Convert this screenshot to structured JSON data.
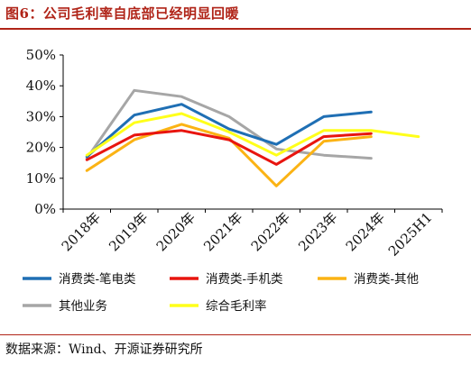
{
  "title": "图6：公司毛利率自底部已经明显回暖",
  "source": "数据来源：Wind、开源证券研究所",
  "chart_data": {
    "type": "line",
    "title": "",
    "xlabel": "",
    "ylabel": "",
    "categories": [
      "2018年",
      "2019年",
      "2020年",
      "2021年",
      "2022年",
      "2023年",
      "2024年",
      "2025H1"
    ],
    "y_ticks": [
      "0%",
      "10%",
      "20%",
      "30%",
      "40%",
      "50%"
    ],
    "ylim": [
      0,
      50
    ],
    "grid": false,
    "legend_position": "bottom",
    "series": [
      {
        "name": "消费类-笔电类",
        "color": "#1f6fb4",
        "values": [
          17,
          30.5,
          34,
          26,
          21,
          30,
          31.5,
          null
        ]
      },
      {
        "name": "消费类-手机类",
        "color": "#e8150f",
        "values": [
          16,
          24,
          25.5,
          22.5,
          14.5,
          23.5,
          24.5,
          null
        ]
      },
      {
        "name": "消费类-其他",
        "color": "#fbb314",
        "values": [
          12.5,
          22.5,
          27.5,
          23,
          7.5,
          22,
          23.5,
          null
        ]
      },
      {
        "name": "其他业务",
        "color": "#a6a6a6",
        "values": [
          16.5,
          38.5,
          36.5,
          30,
          19.5,
          17.5,
          16.5,
          null
        ]
      },
      {
        "name": "综合毛利率",
        "color": "#ffff1a",
        "values": [
          17.5,
          28,
          31,
          25,
          17.5,
          25.5,
          25.5,
          23.5
        ]
      }
    ]
  }
}
